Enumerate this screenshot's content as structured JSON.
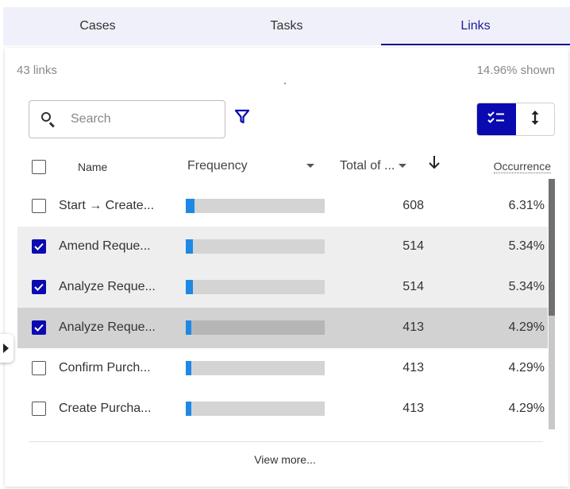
{
  "tabs": [
    {
      "label": "Cases",
      "active": false
    },
    {
      "label": "Tasks",
      "active": false
    },
    {
      "label": "Links",
      "active": true
    }
  ],
  "summary": {
    "count": "43 links",
    "shown": "14.96% shown"
  },
  "search": {
    "placeholder": "Search",
    "value": ""
  },
  "view_toggle": {
    "options": [
      "checklist-icon",
      "sort-vertical-icon"
    ],
    "selected": "checklist-icon"
  },
  "columns": {
    "name": "Name",
    "frequency": "Frequency",
    "total": "Total of ...",
    "occurrence": "Occurrence"
  },
  "rows": [
    {
      "name": "Start → Create...",
      "checked": false,
      "frequency_fraction": 0.06,
      "total": "608",
      "occurrence": "6.31%",
      "state": "normal"
    },
    {
      "name": "Amend Reque...",
      "checked": true,
      "frequency_fraction": 0.05,
      "total": "514",
      "occurrence": "5.34%",
      "state": "selected"
    },
    {
      "name": "Analyze Reque...",
      "checked": true,
      "frequency_fraction": 0.05,
      "total": "514",
      "occurrence": "5.34%",
      "state": "selected"
    },
    {
      "name": "Analyze Reque...",
      "checked": true,
      "frequency_fraction": 0.04,
      "total": "413",
      "occurrence": "4.29%",
      "state": "active"
    },
    {
      "name": "Confirm Purch...",
      "checked": false,
      "frequency_fraction": 0.04,
      "total": "413",
      "occurrence": "4.29%",
      "state": "normal"
    },
    {
      "name": "Create Purcha...",
      "checked": false,
      "frequency_fraction": 0.04,
      "total": "413",
      "occurrence": "4.29%",
      "state": "normal"
    }
  ],
  "footer": {
    "view_more": "View more..."
  },
  "colors": {
    "accent": "#0a0ab0",
    "bar_fill": "#1e88e5",
    "bar_track": "#d4d4d4",
    "selected_row": "#eeeeee",
    "active_row": "#d2d2d2"
  }
}
